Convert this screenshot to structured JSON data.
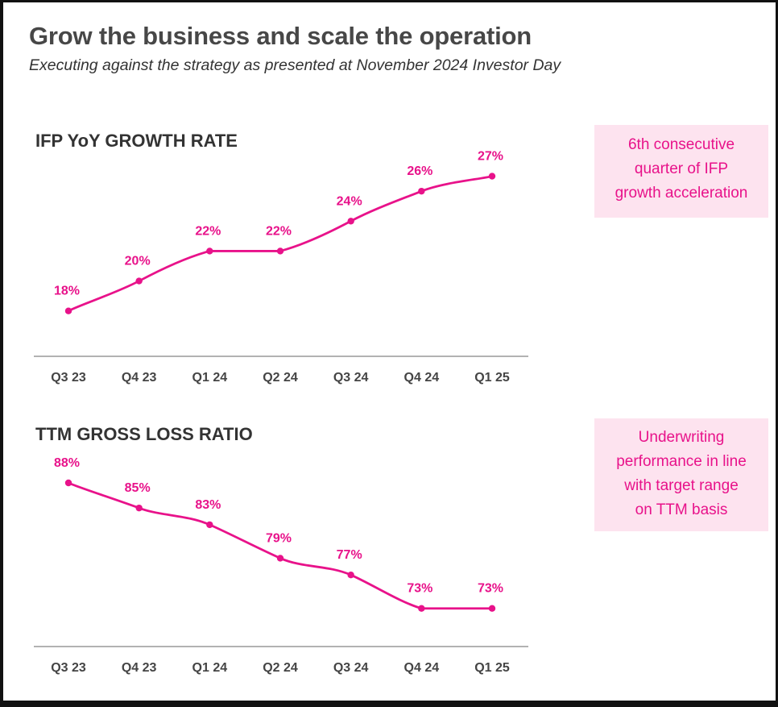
{
  "header": {
    "title": "Grow the business and scale the operation",
    "subtitle": "Executing against the strategy as presented at November 2024 Investor Day"
  },
  "colors": {
    "accent": "#e8128a",
    "callout_bg": "#fde3ef",
    "axis": "#999999",
    "text": "#333333"
  },
  "callouts": [
    {
      "text": "6th consecutive\nquarter of IFP\ngrowth acceleration"
    },
    {
      "text": "Underwriting\nperformance in line\nwith target range\non TTM basis"
    }
  ],
  "chart_data": [
    {
      "type": "line",
      "title": "IFP YoY GROWTH RATE",
      "categories": [
        "Q3 23",
        "Q4 23",
        "Q1 24",
        "Q2 24",
        "Q3 24",
        "Q4 24",
        "Q1 25"
      ],
      "values": [
        18,
        20,
        22,
        22,
        24,
        26,
        27
      ],
      "labels": [
        "18%",
        "20%",
        "22%",
        "22%",
        "24%",
        "26%",
        "27%"
      ],
      "unit": "%",
      "ylim": [
        14,
        28
      ],
      "grid": false,
      "legend": "none"
    },
    {
      "type": "line",
      "title": "TTM GROSS LOSS RATIO",
      "categories": [
        "Q3 23",
        "Q4 23",
        "Q1 24",
        "Q2 24",
        "Q3 24",
        "Q4 24",
        "Q1 25"
      ],
      "values": [
        88,
        85,
        83,
        79,
        77,
        73,
        73
      ],
      "labels": [
        "88%",
        "85%",
        "83%",
        "79%",
        "77%",
        "73%",
        "73%"
      ],
      "unit": "%",
      "ylim": [
        67,
        88
      ],
      "grid": false,
      "legend": "none"
    }
  ]
}
